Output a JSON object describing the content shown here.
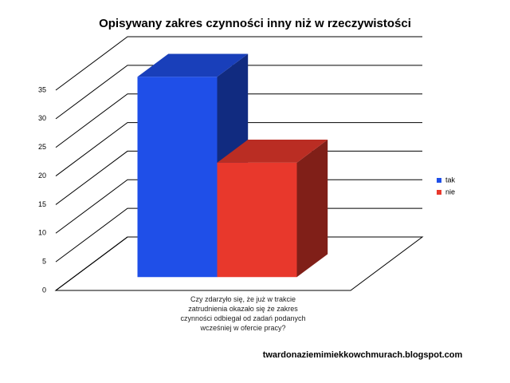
{
  "chart_data": {
    "type": "bar3d",
    "title": "Opisywany zakres czynności inny niż w rzeczywistości",
    "categories": [
      "Czy zdarzyło się, że już w trakcie zatrudnienia okazało się że zakres czynności odbiegał od zadań podanych wcześniej w ofercie pracy?"
    ],
    "series": [
      {
        "name": "tak",
        "color": "#1f4fe8",
        "values": [
          35
        ]
      },
      {
        "name": "nie",
        "color": "#e8382c",
        "values": [
          20
        ]
      }
    ],
    "ylim": [
      0,
      35
    ],
    "yticks": [
      0,
      5,
      10,
      15,
      20,
      25,
      30,
      35
    ],
    "grid": true,
    "legend": "right",
    "annotation": "twardonaziemimiekkowchmurach.blogspot.com"
  }
}
